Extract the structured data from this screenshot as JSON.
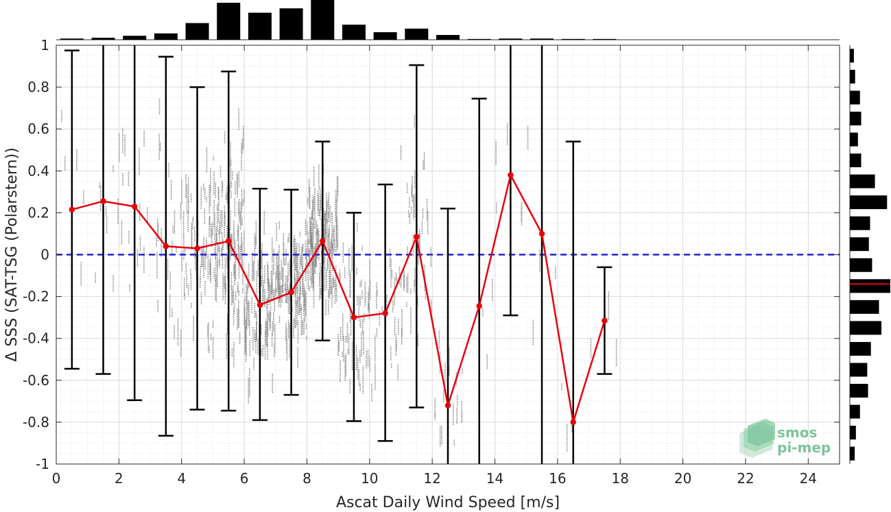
{
  "chart_data": {
    "type": "scatter",
    "xlabel": "Ascat Daily Wind Speed [m/s]",
    "ylabel": "Δ SSS (SAT-TSG (Polarstern))",
    "xlim": [
      0,
      25
    ],
    "ylim": [
      -1,
      1
    ],
    "x_ticks": [
      "0",
      "2",
      "4",
      "6",
      "8",
      "10",
      "12",
      "14",
      "16",
      "18",
      "20",
      "22",
      "24"
    ],
    "y_ticks": [
      "-1",
      "-0.8",
      "-0.6",
      "-0.4",
      "-0.2",
      "0",
      "0.2",
      "0.4",
      "0.6",
      "0.8",
      "1"
    ],
    "grid": true,
    "reference_line": {
      "y": 0,
      "color": "#1f1fd6",
      "style": "dashed"
    },
    "series": [
      {
        "type": "line-errorbar",
        "color": "#e8000b",
        "x": [
          0.5,
          1.5,
          2.5,
          3.5,
          4.5,
          5.5,
          6.5,
          7.5,
          8.5,
          9.5,
          10.5,
          11.5,
          12.5,
          13.5,
          14.5,
          15.5,
          16.5,
          17.5
        ],
        "mean": [
          0.215,
          0.255,
          0.23,
          0.04,
          0.03,
          0.065,
          -0.24,
          -0.18,
          0.065,
          -0.3,
          -0.28,
          0.085,
          -0.72,
          -0.245,
          0.38,
          0.1,
          -0.8,
          -0.315
        ],
        "err_low": [
          -0.545,
          -0.57,
          -0.695,
          -0.865,
          -0.74,
          -0.745,
          -0.79,
          -0.67,
          -0.41,
          -0.795,
          -0.89,
          -0.73,
          -1.0,
          -1.0,
          -0.29,
          -1.0,
          -1.0,
          -0.57
        ],
        "err_high": [
          0.975,
          1.0,
          1.0,
          0.945,
          0.8,
          0.875,
          0.315,
          0.31,
          0.54,
          0.2,
          0.335,
          0.905,
          0.22,
          0.745,
          1.0,
          1.0,
          0.54,
          -0.06
        ]
      }
    ],
    "top_histogram": {
      "bin_centers": [
        0.5,
        1.5,
        2.5,
        3.5,
        4.5,
        5.5,
        6.5,
        7.5,
        8.5,
        9.5,
        10.5,
        11.5,
        12.5,
        13.5,
        14.5,
        15.5,
        16.5,
        17.5
      ],
      "relative_counts": [
        0.03,
        0.05,
        0.1,
        0.16,
        0.42,
        0.93,
        0.68,
        0.79,
        1.0,
        0.38,
        0.19,
        0.28,
        0.12,
        0.02,
        0.03,
        0.03,
        0.02,
        0.02
      ]
    },
    "right_histogram": {
      "bin_centers": [
        -0.95,
        -0.85,
        -0.75,
        -0.65,
        -0.55,
        -0.45,
        -0.35,
        -0.25,
        -0.15,
        -0.05,
        0.05,
        0.15,
        0.25,
        0.35,
        0.45,
        0.55,
        0.65,
        0.75,
        0.85,
        0.95
      ],
      "relative_counts": [
        0.12,
        0.15,
        0.25,
        0.45,
        0.43,
        0.52,
        0.78,
        0.72,
        1.0,
        0.55,
        0.47,
        0.5,
        0.92,
        0.62,
        0.28,
        0.2,
        0.28,
        0.25,
        0.13,
        0.1
      ],
      "median_line": {
        "y": -0.14,
        "color": "#e8000b"
      }
    },
    "scatter_color": "#8a8a8a"
  },
  "logo": {
    "line1": "smos",
    "line2": "pi-mep"
  }
}
